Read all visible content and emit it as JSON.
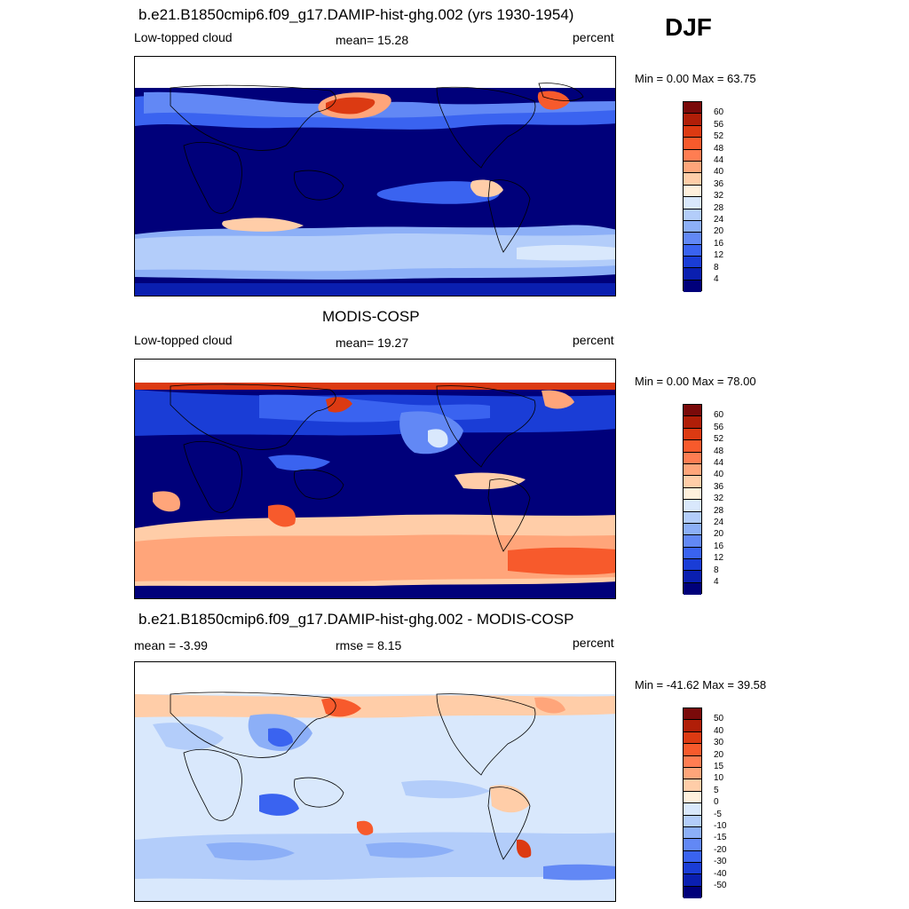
{
  "season": "DJF",
  "blue_red_palette": [
    "#00007a",
    "#0a1fb0",
    "#1a3dd6",
    "#3a63f0",
    "#6288f5",
    "#8caff7",
    "#b3cdfa",
    "#d9e8fc",
    "#fff0dc",
    "#ffcda8",
    "#ffa57a",
    "#ff7d52",
    "#f75a2c",
    "#dc3a12",
    "#b01e08",
    "#7a0a0a"
  ],
  "panels": [
    {
      "title": "b.e21.B1850cmip6.f09_g17.DAMIP-hist-ghg.002 (yrs 1930-1954)",
      "left_label": "Low-topped cloud",
      "center_label": "mean=  15.28",
      "right_label": "percent",
      "minmax": "Min =    0.00 Max =  63.75",
      "colorbar_labels": [
        "60",
        "56",
        "52",
        "48",
        "44",
        "40",
        "36",
        "32",
        "28",
        "24",
        "20",
        "16",
        "12",
        "8",
        "4"
      ]
    },
    {
      "title": "MODIS-COSP",
      "left_label": "Low-topped cloud",
      "center_label": "mean=  19.27",
      "right_label": "percent",
      "minmax": "Min =    0.00 Max =  78.00",
      "colorbar_labels": [
        "60",
        "56",
        "52",
        "48",
        "44",
        "40",
        "36",
        "32",
        "28",
        "24",
        "20",
        "16",
        "12",
        "8",
        "4"
      ]
    },
    {
      "title": "b.e21.B1850cmip6.f09_g17.DAMIP-hist-ghg.002 - MODIS-COSP",
      "left_label": "mean =  -3.99",
      "center_label": "rmse =    8.15",
      "right_label": "percent",
      "minmax": "Min = -41.62 Max =  39.58",
      "colorbar_labels": [
        "50",
        "40",
        "30",
        "20",
        "15",
        "10",
        "5",
        "0",
        "-5",
        "-10",
        "-15",
        "-20",
        "-30",
        "-40",
        "-50"
      ]
    }
  ]
}
